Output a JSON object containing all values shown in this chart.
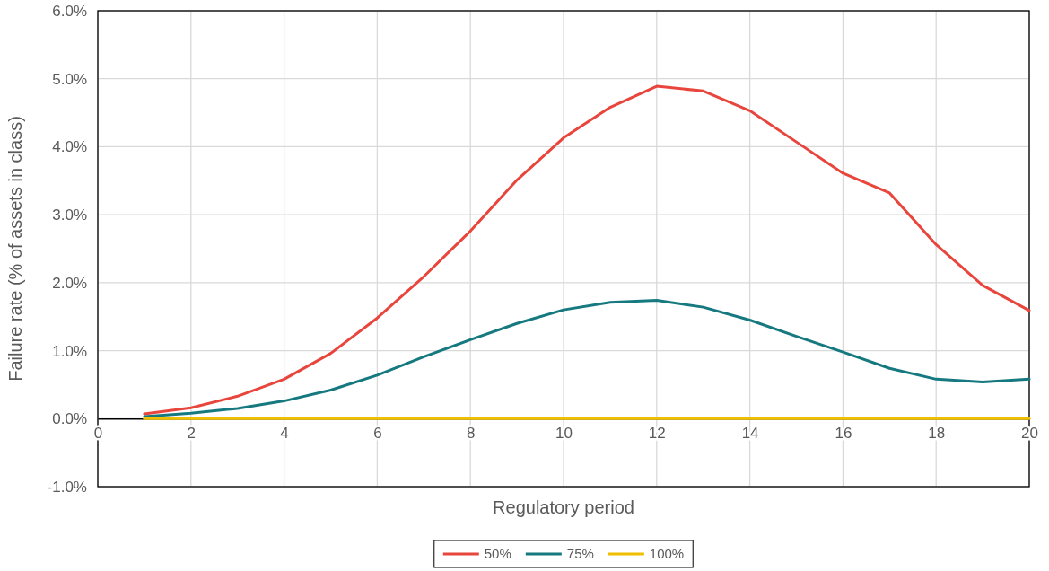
{
  "chart_data": {
    "type": "line",
    "xlabel": "Regulatory period",
    "ylabel": "Failure rate (% of assets in class)",
    "x": [
      1,
      2,
      3,
      4,
      5,
      6,
      7,
      8,
      9,
      10,
      11,
      12,
      13,
      14,
      15,
      16,
      17,
      18,
      19,
      20
    ],
    "series": [
      {
        "name": "50%",
        "color": "#e8453c",
        "values": [
          0.07,
          0.16,
          0.33,
          0.58,
          0.96,
          1.48,
          2.09,
          2.76,
          3.51,
          4.13,
          4.58,
          4.89,
          4.82,
          4.53,
          4.07,
          3.61,
          3.32,
          2.56,
          1.96,
          1.59
        ]
      },
      {
        "name": "75%",
        "color": "#15797f",
        "values": [
          0.03,
          0.08,
          0.15,
          0.26,
          0.42,
          0.64,
          0.91,
          1.16,
          1.4,
          1.6,
          1.71,
          1.74,
          1.64,
          1.45,
          1.21,
          0.98,
          0.74,
          0.58,
          0.54,
          0.58
        ]
      },
      {
        "name": "100%",
        "color": "#f0c000",
        "values": [
          0,
          0,
          0,
          0,
          0,
          0,
          0,
          0,
          0,
          0,
          0,
          0,
          0,
          0,
          0,
          0,
          0,
          0,
          0,
          0
        ]
      }
    ],
    "xlim": [
      0,
      20
    ],
    "xticks": [
      0,
      2,
      4,
      6,
      8,
      10,
      12,
      14,
      16,
      18,
      20
    ],
    "ylim": [
      -1,
      6
    ],
    "yticks": [
      {
        "value": -1,
        "label": "-1.0%"
      },
      {
        "value": 0,
        "label": "0.0%"
      },
      {
        "value": 1,
        "label": "1.0%"
      },
      {
        "value": 2,
        "label": "2.0%"
      },
      {
        "value": 3,
        "label": "3.0%"
      },
      {
        "value": 4,
        "label": "4.0%"
      },
      {
        "value": 5,
        "label": "5.0%"
      },
      {
        "value": 6,
        "label": "6.0%"
      }
    ],
    "grid": true,
    "legend": "bottom",
    "line_style": "solid"
  }
}
